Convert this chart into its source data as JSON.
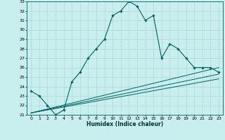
{
  "xlabel": "Humidex (Indice chaleur)",
  "bg_color": "#c8eeee",
  "grid_color": "#b0d8d8",
  "line_color": "#006060",
  "xlim": [
    -0.5,
    23.5
  ],
  "ylim": [
    21,
    33
  ],
  "xticks": [
    0,
    1,
    2,
    3,
    4,
    5,
    6,
    7,
    8,
    9,
    10,
    11,
    12,
    13,
    14,
    15,
    16,
    17,
    18,
    19,
    20,
    21,
    22,
    23
  ],
  "yticks": [
    21,
    22,
    23,
    24,
    25,
    26,
    27,
    28,
    29,
    30,
    31,
    32,
    33
  ],
  "humidex_x": [
    0,
    1,
    2,
    3,
    4,
    5,
    6,
    7,
    8,
    9,
    10,
    11,
    12,
    13,
    14,
    15,
    16,
    17,
    18,
    19,
    20,
    21,
    22,
    23
  ],
  "humidex_y": [
    23.5,
    23.0,
    22.0,
    21.0,
    21.5,
    24.5,
    25.5,
    27.0,
    28.0,
    29.0,
    31.5,
    32.0,
    33.0,
    32.5,
    31.0,
    31.5,
    27.0,
    28.5,
    28.0,
    27.0,
    26.0,
    26.0,
    26.0,
    25.5
  ],
  "line1_x": [
    0,
    23
  ],
  "line1_y": [
    21.2,
    26.0
  ],
  "line2_x": [
    0,
    23
  ],
  "line2_y": [
    21.2,
    24.8
  ],
  "line3_x": [
    0,
    23
  ],
  "line3_y": [
    21.2,
    25.3
  ]
}
